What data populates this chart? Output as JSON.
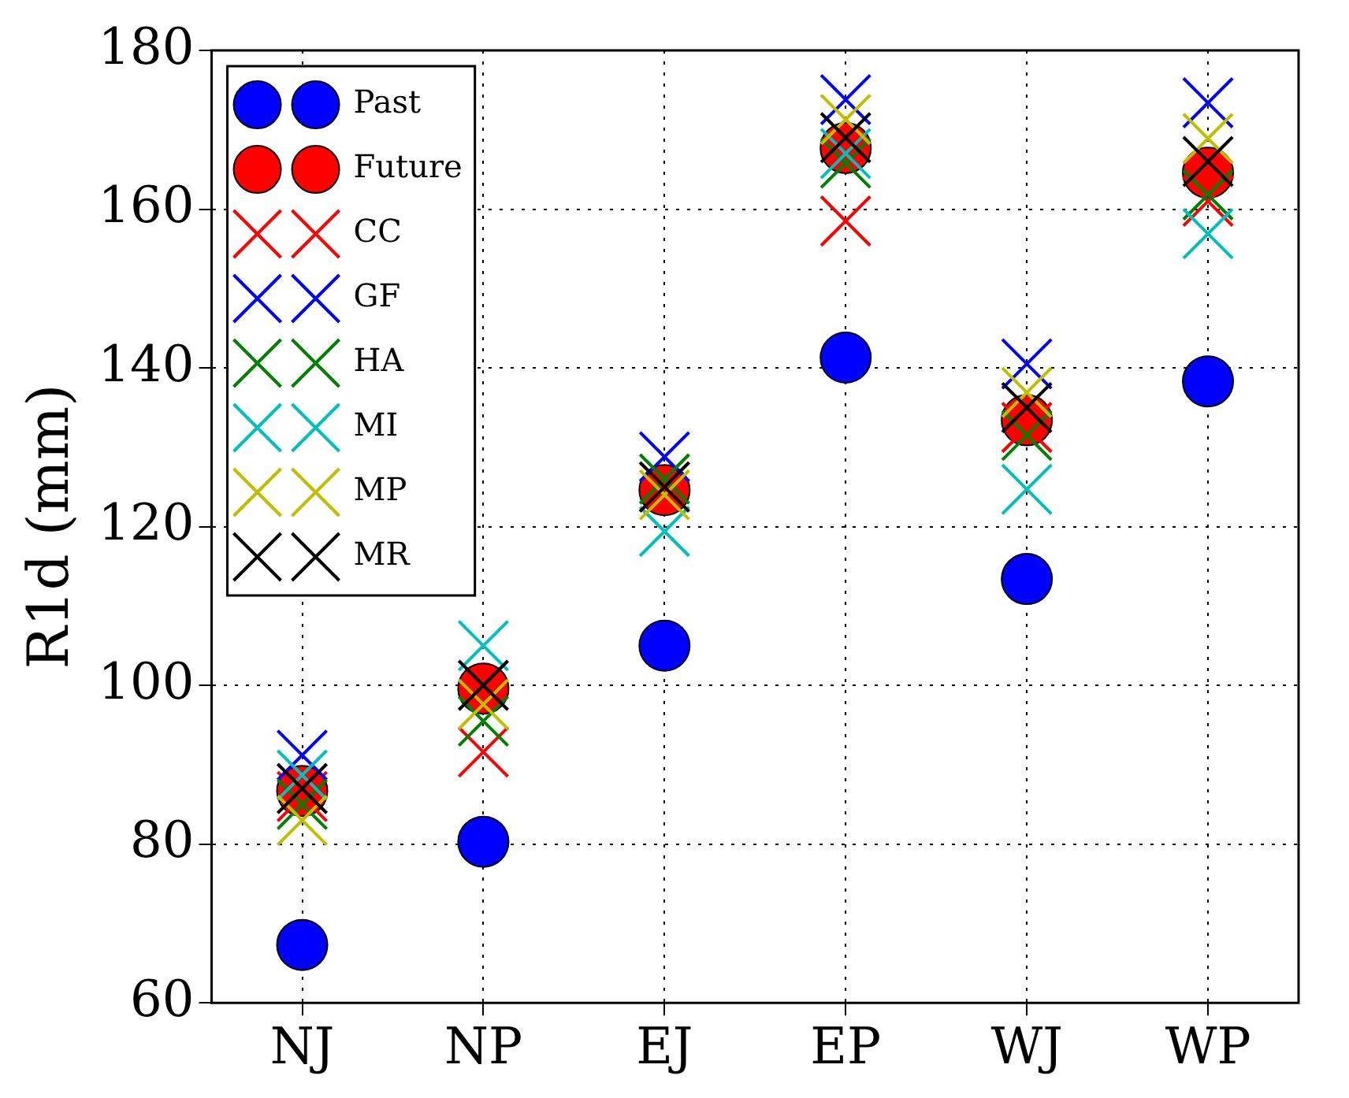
{
  "chart_data": {
    "type": "scatter",
    "ylabel": "R1d (mm)",
    "categories": [
      "NJ",
      "NP",
      "EJ",
      "EP",
      "WJ",
      "WP"
    ],
    "ylim": [
      60,
      180
    ],
    "yticks": [
      60,
      80,
      100,
      120,
      140,
      160,
      180
    ],
    "grid": true,
    "legend": "top left",
    "series": [
      {
        "name": "Past",
        "color": "#0000ff",
        "marker": "circle",
        "values": [
          67.3,
          80.3,
          105,
          141.3,
          113.4,
          138.3
        ]
      },
      {
        "name": "Future",
        "color": "#ff0000",
        "marker": "circle",
        "values": [
          86.7,
          99.6,
          124.6,
          167.7,
          133.4,
          164.6
        ]
      },
      {
        "name": "CC",
        "color": "#ff0000",
        "marker": "cross",
        "values": [
          86,
          91.6,
          125,
          158.5,
          132.5,
          161
        ]
      },
      {
        "name": "GF",
        "color": "#0000ff",
        "marker": "cross",
        "values": [
          91.2,
          null,
          128.8,
          173.8,
          140.5,
          173.4
        ]
      },
      {
        "name": "HA",
        "color": "#008000",
        "marker": "cross",
        "values": [
          85,
          95.5,
          126,
          165.8,
          131.5,
          161.8
        ]
      },
      {
        "name": "MI",
        "color": "#00bfbf",
        "marker": "cross",
        "values": [
          88.7,
          105,
          119.4,
          167,
          124.7,
          156.9
        ]
      },
      {
        "name": "MP",
        "color": "#bfbf00",
        "marker": "cross",
        "values": [
          83,
          97.6,
          124,
          171.3,
          136.9,
          168.9
        ]
      },
      {
        "name": "MR",
        "color": "#000000",
        "marker": "cross",
        "values": [
          87,
          100,
          125,
          169,
          135,
          166
        ]
      }
    ]
  }
}
